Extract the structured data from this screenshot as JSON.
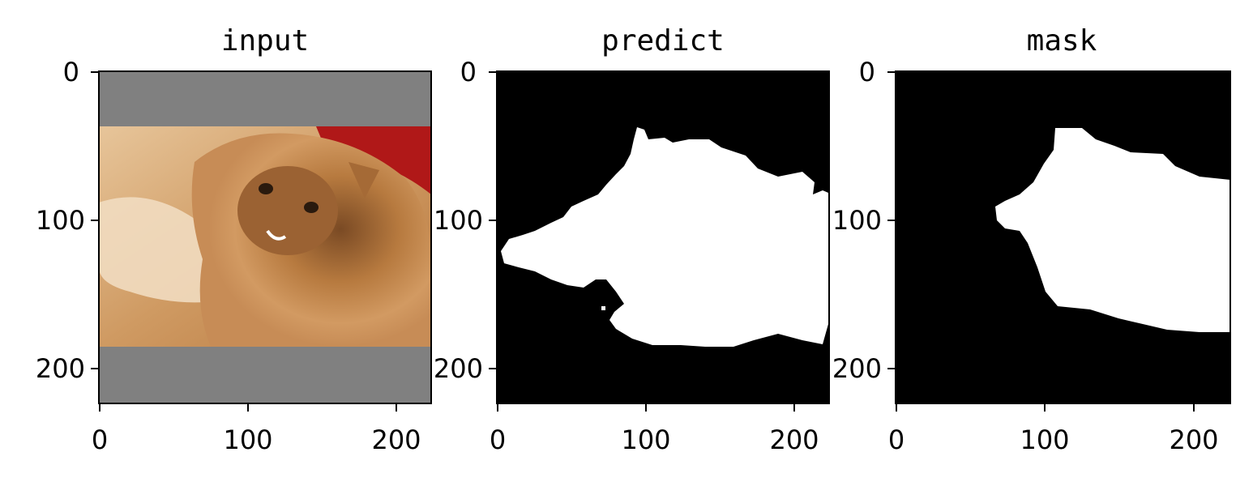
{
  "panels": [
    {
      "title": "input",
      "xticks": [
        "0",
        "100",
        "200"
      ],
      "yticks": [
        "0",
        "100",
        "200"
      ],
      "content": "photo"
    },
    {
      "title": "predict",
      "xticks": [
        "0",
        "100",
        "200"
      ],
      "yticks": [
        "0",
        "100",
        "200"
      ],
      "content": "binary-mask"
    },
    {
      "title": "mask",
      "xticks": [
        "0",
        "100",
        "200"
      ],
      "yticks": [
        "0",
        "100",
        "200"
      ],
      "content": "binary-mask"
    }
  ],
  "image_size": [
    224,
    224
  ],
  "colors": {
    "pad_gray": "#808080",
    "mask_fg": "#ffffff",
    "mask_bg": "#000000"
  }
}
